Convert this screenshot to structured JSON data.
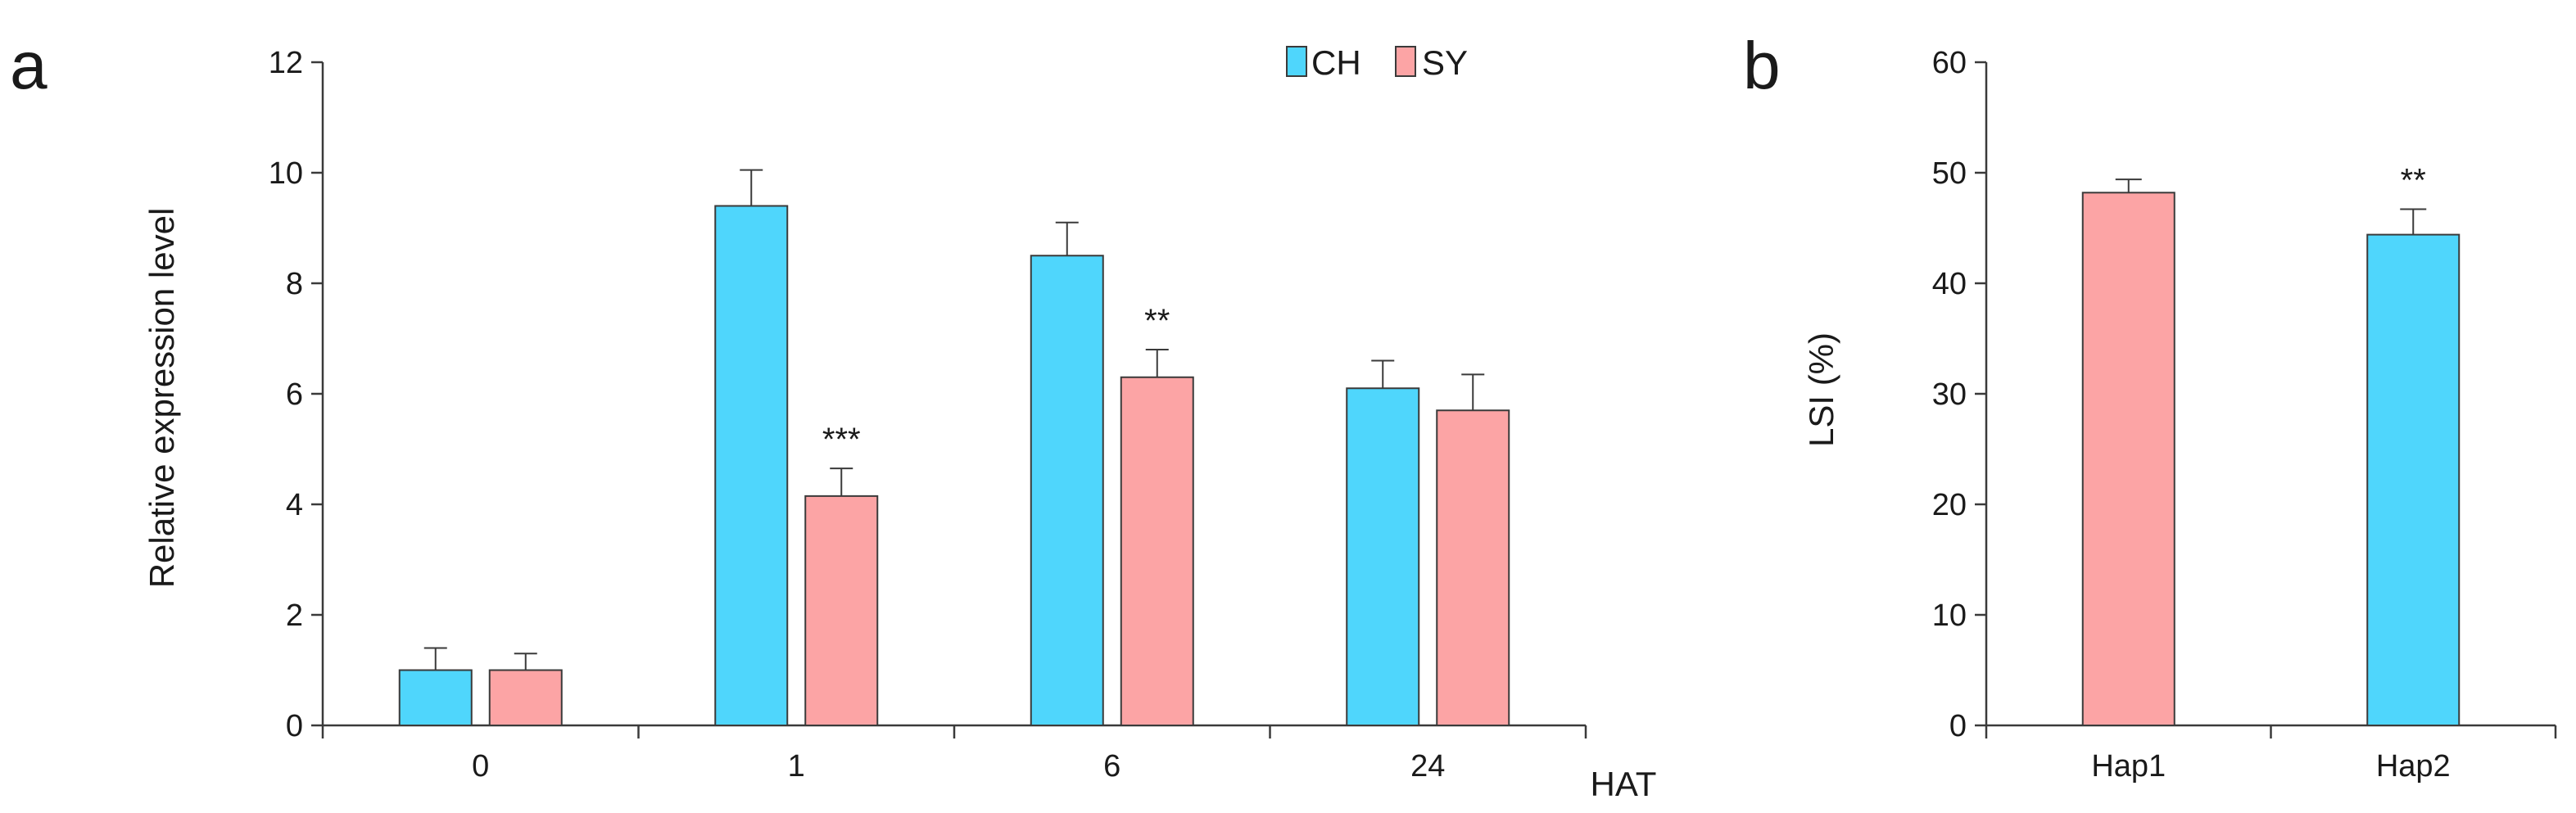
{
  "colors": {
    "CH": "#4fd6fc",
    "SY": "#fca4a5"
  },
  "chart_data": [
    {
      "panel": "a",
      "type": "bar",
      "categories": [
        "0",
        "1",
        "6",
        "24"
      ],
      "xlabel": "HAT",
      "ylabel": "Relative expression level",
      "ylim": [
        0,
        12
      ],
      "yticks": [
        0,
        2,
        4,
        6,
        8,
        10,
        12
      ],
      "grid": false,
      "legend": "top-right",
      "series": [
        {
          "name": "CH",
          "color_key": "CH",
          "values": [
            1.0,
            9.4,
            8.5,
            6.1
          ],
          "errors": [
            0.4,
            0.65,
            0.6,
            0.5
          ]
        },
        {
          "name": "SY",
          "color_key": "SY",
          "values": [
            1.0,
            4.15,
            6.3,
            5.7
          ],
          "errors": [
            0.3,
            0.5,
            0.5,
            0.65
          ]
        }
      ],
      "annotations": [
        {
          "series": 1,
          "category": 1,
          "text": "***"
        },
        {
          "series": 1,
          "category": 2,
          "text": "**"
        }
      ]
    },
    {
      "panel": "b",
      "type": "bar",
      "categories": [
        "Hap1",
        "Hap2"
      ],
      "xlabel": "",
      "ylabel": "LSI (%)",
      "ylim": [
        0,
        60
      ],
      "yticks": [
        0,
        10,
        20,
        30,
        40,
        50,
        60
      ],
      "grid": false,
      "series": [
        {
          "values": [
            48.2,
            44.4
          ],
          "errors": [
            1.2,
            2.3
          ],
          "color_keys": [
            "SY",
            "CH"
          ]
        }
      ],
      "annotations": [
        {
          "series": 0,
          "category": 1,
          "text": "**"
        }
      ]
    }
  ]
}
